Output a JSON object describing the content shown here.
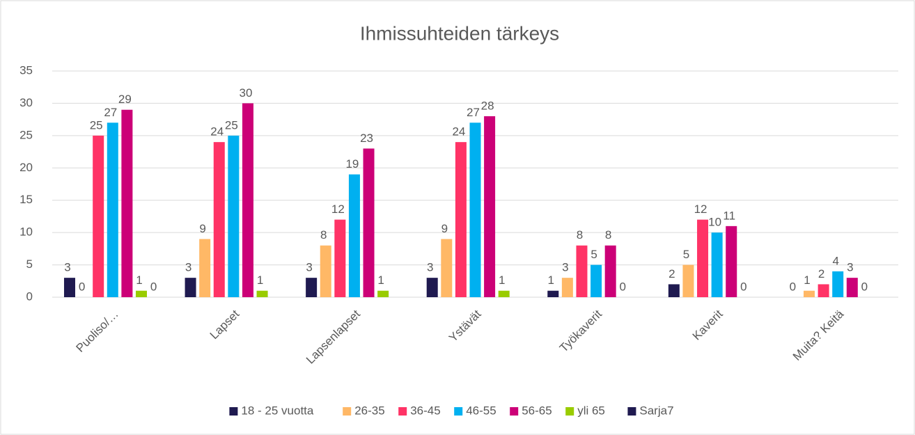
{
  "chart_data": {
    "type": "bar",
    "title": "Ihmissuhteiden tärkeys",
    "categories": [
      "Puoliso/…",
      "Lapset",
      "Lapsenlapset",
      "Ystävät",
      "Työkaverit",
      "Kaverit",
      "Muita? Keitä"
    ],
    "series": [
      {
        "name": "18 - 25 vuotta",
        "color": "#1f1a50",
        "values": [
          3,
          3,
          3,
          3,
          1,
          2,
          0
        ]
      },
      {
        "name": "26-35",
        "color": "#ffb866",
        "values": [
          0,
          9,
          8,
          9,
          3,
          5,
          1
        ]
      },
      {
        "name": "36-45",
        "color": "#ff3366",
        "values": [
          25,
          24,
          12,
          24,
          8,
          12,
          2
        ]
      },
      {
        "name": "46-55",
        "color": "#00b0f0",
        "values": [
          27,
          25,
          19,
          27,
          5,
          10,
          4
        ]
      },
      {
        "name": "56-65",
        "color": "#cc0077",
        "values": [
          29,
          30,
          23,
          28,
          8,
          11,
          3
        ]
      },
      {
        "name": "yli 65",
        "color": "#99cc00",
        "values": [
          1,
          1,
          1,
          1,
          0,
          0,
          0
        ]
      },
      {
        "name": "Sarja7",
        "color": "#1f1a50",
        "values": [
          0,
          null,
          null,
          null,
          null,
          null,
          null
        ]
      }
    ],
    "ylim": [
      0,
      35
    ],
    "yticks": [
      0,
      5,
      10,
      15,
      20,
      25,
      30,
      35
    ],
    "grid": true,
    "legend": "bottom"
  }
}
